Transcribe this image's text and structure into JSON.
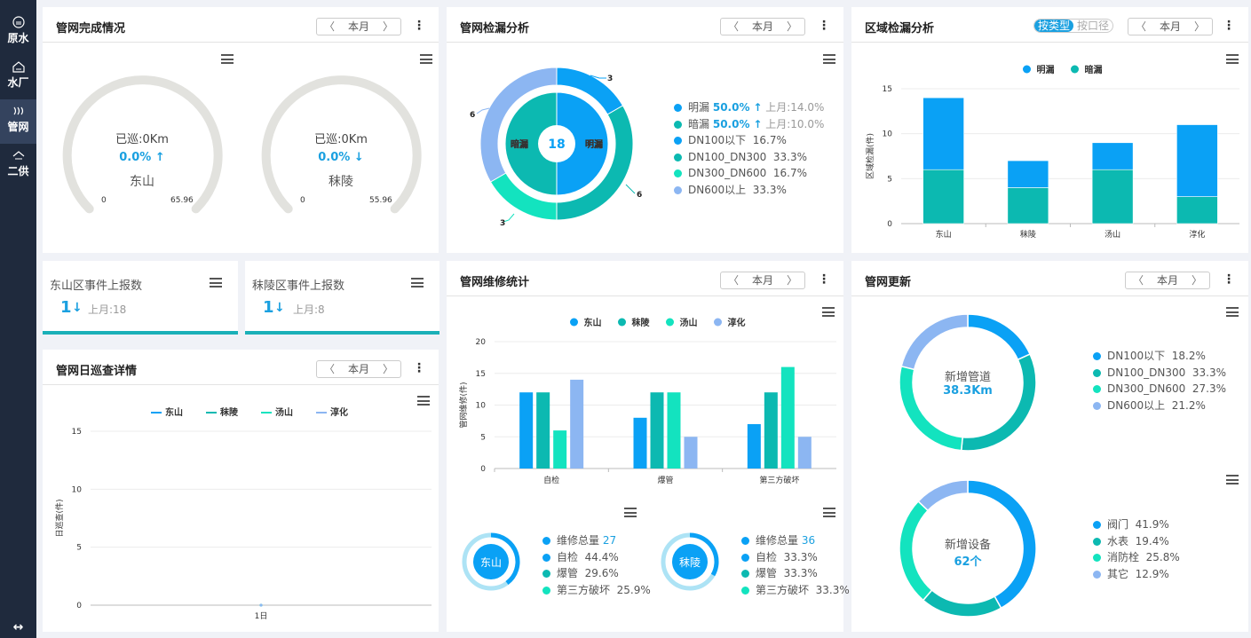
{
  "sidebar": {
    "items": [
      {
        "label": "原水",
        "icon": "water-source-icon"
      },
      {
        "label": "水厂",
        "icon": "plant-icon"
      },
      {
        "label": "管网",
        "icon": "pipe-network-icon"
      },
      {
        "label": "二供",
        "icon": "secondary-supply-icon"
      }
    ],
    "expand_glyph": "↔"
  },
  "common": {
    "month": "本月",
    "prev": "〈",
    "next": "〉",
    "kebab": "⋮"
  },
  "completion": {
    "title": "管网完成情况",
    "gauges": [
      {
        "label": "已巡:0Km",
        "pct": "0.0%",
        "arrow": "up",
        "arrow_glyph": "↑",
        "area": "东山",
        "min": "0",
        "max": "65.96",
        "value": 0
      },
      {
        "label": "已巡:0Km",
        "pct": "0.0%",
        "arrow": "down",
        "arrow_glyph": "↓",
        "area": "秣陵",
        "min": "0",
        "max": "55.96",
        "value": 0
      }
    ]
  },
  "leak": {
    "title": "管网检漏分析",
    "center_value": "18",
    "inner_labels": [
      "暗漏",
      "明漏"
    ],
    "outer_labels": [
      "3",
      "6",
      "3",
      "6"
    ],
    "legend": [
      {
        "name": "明漏",
        "pct": "50.0%",
        "arrow_glyph": "↑",
        "last": "上月:14.0%",
        "color": "#0aa1f5"
      },
      {
        "name": "暗漏",
        "pct": "50.0%",
        "arrow_glyph": "↑",
        "last": "上月:10.0%",
        "color": "#0cb9b1"
      },
      {
        "name": "DN100以下",
        "pct": "16.7%",
        "color": "#0aa1f5"
      },
      {
        "name": "DN100_DN300",
        "pct": "33.3%",
        "color": "#0cb9b1"
      },
      {
        "name": "DN300_DN600",
        "pct": "16.7%",
        "color": "#13e3bf"
      },
      {
        "name": "DN600以上",
        "pct": "33.3%",
        "color": "#8cb6f2"
      }
    ]
  },
  "region": {
    "title": "区域检漏分析",
    "toggle": [
      "按类型",
      "按口径"
    ],
    "chart_data": {
      "type": "bar",
      "stacked": true,
      "categories": [
        "东山",
        "秣陵",
        "汤山",
        "淳化"
      ],
      "series": [
        {
          "name": "明漏",
          "color": "#0aa1f5",
          "values": [
            8,
            3,
            3,
            8
          ]
        },
        {
          "name": "暗漏",
          "color": "#0cb9b1",
          "values": [
            6,
            4,
            6,
            3
          ]
        }
      ],
      "ylabel": "区域检漏(件)",
      "ylim": [
        0,
        15
      ],
      "yticks": [
        "0",
        "5",
        "10",
        "15"
      ],
      "legend": "top"
    }
  },
  "kpis": [
    {
      "title": "东山区事件上报数",
      "value": "1",
      "arrow_glyph": "↓",
      "last": "上月:18"
    },
    {
      "title": "秣陵区事件上报数",
      "value": "1",
      "arrow_glyph": "↓",
      "last": "上月:8"
    }
  ],
  "daily": {
    "title": "管网日巡查详情",
    "chart_data": {
      "type": "line",
      "categories": [
        "1日"
      ],
      "series": [
        {
          "name": "东山",
          "color": "#0aa1f5",
          "values": [
            0
          ]
        },
        {
          "name": "秣陵",
          "color": "#0cb9b1",
          "values": [
            0
          ]
        },
        {
          "name": "汤山",
          "color": "#13e3bf",
          "values": [
            0
          ]
        },
        {
          "name": "淳化",
          "color": "#8cb6f2",
          "values": [
            0
          ]
        }
      ],
      "ylabel": "日巡查(件)",
      "ylim": [
        0,
        15
      ],
      "yticks": [
        "0",
        "5",
        "10",
        "15"
      ],
      "legend": "top"
    }
  },
  "repair": {
    "title": "管网维修统计",
    "chart_data": {
      "type": "bar",
      "categories": [
        "自检",
        "爆管",
        "第三方破坏"
      ],
      "series": [
        {
          "name": "东山",
          "color": "#0aa1f5",
          "values": [
            12,
            8,
            7
          ]
        },
        {
          "name": "秣陵",
          "color": "#0cb9b1",
          "values": [
            12,
            12,
            12
          ]
        },
        {
          "name": "汤山",
          "color": "#13e3bf",
          "values": [
            6,
            12,
            16
          ]
        },
        {
          "name": "淳化",
          "color": "#8cb6f2",
          "values": [
            14,
            5,
            5
          ]
        }
      ],
      "ylabel": "管网维修(件)",
      "ylim": [
        0,
        20
      ],
      "yticks": [
        "0",
        "5",
        "10",
        "15",
        "20"
      ],
      "legend": "top"
    },
    "rings": [
      {
        "area": "东山",
        "total_label": "维修总量",
        "total": "27",
        "items": [
          {
            "name": "自检",
            "pct": "44.4%",
            "color": "#0aa1f5"
          },
          {
            "name": "爆管",
            "pct": "29.6%",
            "color": "#0cb9b1"
          },
          {
            "name": "第三方破坏",
            "pct": "25.9%",
            "color": "#13e3bf"
          }
        ]
      },
      {
        "area": "秣陵",
        "total_label": "维修总量",
        "total": "36",
        "items": [
          {
            "name": "自检",
            "pct": "33.3%",
            "color": "#0aa1f5"
          },
          {
            "name": "爆管",
            "pct": "33.3%",
            "color": "#0cb9b1"
          },
          {
            "name": "第三方破坏",
            "pct": "33.3%",
            "color": "#13e3bf"
          }
        ]
      }
    ]
  },
  "update": {
    "title": "管网更新",
    "pipes": {
      "label": "新增管道",
      "value": "38.3Km",
      "items": [
        {
          "name": "DN100以下",
          "pct": "18.2%",
          "frac": 0.182,
          "color": "#0aa1f5"
        },
        {
          "name": "DN100_DN300",
          "pct": "33.3%",
          "frac": 0.333,
          "color": "#0cb9b1"
        },
        {
          "name": "DN300_DN600",
          "pct": "27.3%",
          "frac": 0.273,
          "color": "#13e3bf"
        },
        {
          "name": "DN600以上",
          "pct": "21.2%",
          "frac": 0.212,
          "color": "#8cb6f2"
        }
      ]
    },
    "devices": {
      "label": "新增设备",
      "value": "62个",
      "items": [
        {
          "name": "阀门",
          "pct": "41.9%",
          "frac": 0.419,
          "color": "#0aa1f5"
        },
        {
          "name": "水表",
          "pct": "19.4%",
          "frac": 0.194,
          "color": "#0cb9b1"
        },
        {
          "name": "消防栓",
          "pct": "25.8%",
          "frac": 0.258,
          "color": "#13e3bf"
        },
        {
          "name": "其它",
          "pct": "12.9%",
          "frac": 0.129,
          "color": "#8cb6f2"
        }
      ]
    }
  }
}
